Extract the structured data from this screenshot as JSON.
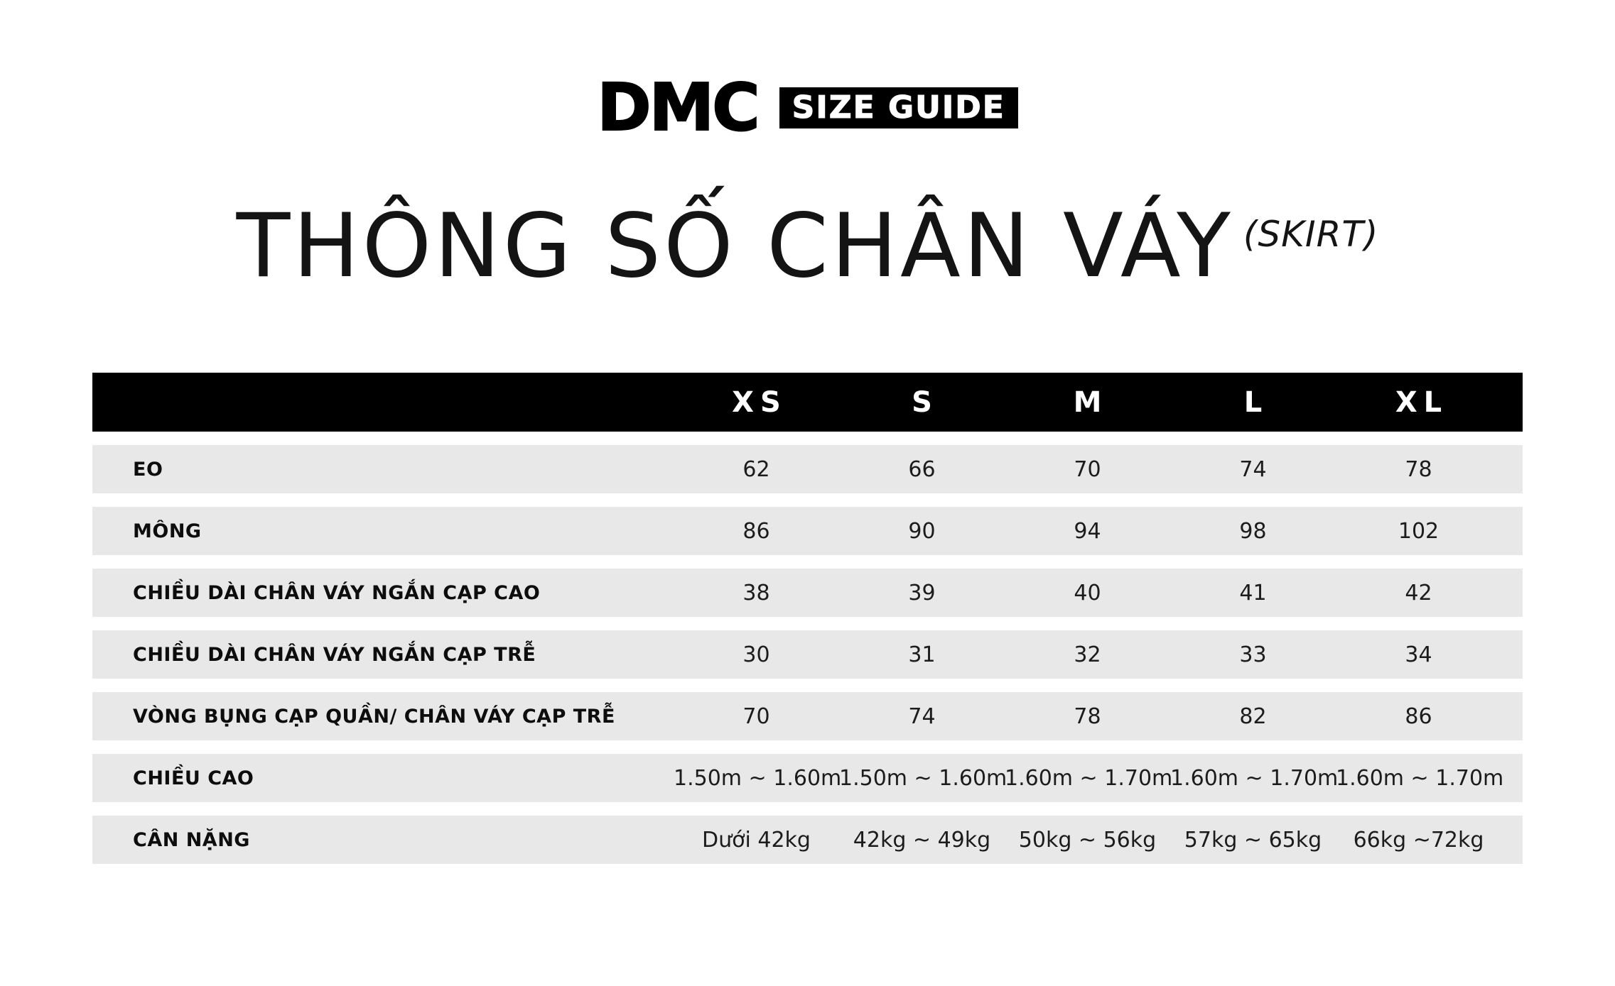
{
  "brand": {
    "name": "DMC",
    "badge": "SIZE GUIDE"
  },
  "title": {
    "main": "THÔNG SỐ CHÂN VÁY",
    "superscript": "(SKIRT)"
  },
  "colors": {
    "page_bg": "#ffffff",
    "header_bar_bg": "#000000",
    "header_bar_text": "#ffffff",
    "row_bg": "#e8e8e8",
    "text": "#111111"
  },
  "table": {
    "columns": [
      "XS",
      "S",
      "M",
      "L",
      "XL"
    ],
    "rows": [
      {
        "label": "EO",
        "values": [
          "62",
          "66",
          "70",
          "74",
          "78"
        ]
      },
      {
        "label": "MÔNG",
        "values": [
          "86",
          "90",
          "94",
          "98",
          "102"
        ]
      },
      {
        "label": "CHIỀU DÀI CHÂN VÁY NGẮN CẠP CAO",
        "values": [
          "38",
          "39",
          "40",
          "41",
          "42"
        ]
      },
      {
        "label": "CHIỀU DÀI CHÂN VÁY NGẮN CẠP TRỄ",
        "values": [
          "30",
          "31",
          "32",
          "33",
          "34"
        ]
      },
      {
        "label": "VÒNG BỤNG CẠP QUẦN/ CHÂN VÁY CẠP TRỄ",
        "values": [
          "70",
          "74",
          "78",
          "82",
          "86"
        ]
      },
      {
        "label": "CHIỀU CAO",
        "values": [
          "1.50m ~ 1.60m",
          "1.50m ~ 1.60m",
          "1.60m ~ 1.70m",
          "1.60m ~ 1.70m",
          "1.60m ~ 1.70m"
        ]
      },
      {
        "label": "CÂN NẶNG",
        "values": [
          "Dưới 42kg",
          "42kg ~ 49kg",
          "50kg ~ 56kg",
          "57kg ~ 65kg",
          "66kg ~72kg"
        ]
      }
    ]
  }
}
